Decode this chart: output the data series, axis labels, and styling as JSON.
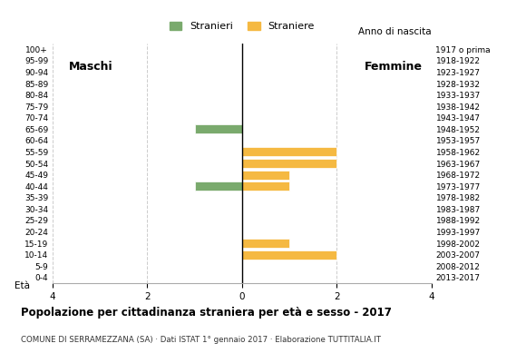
{
  "age_groups": [
    "100+",
    "95-99",
    "90-94",
    "85-89",
    "80-84",
    "75-79",
    "70-74",
    "65-69",
    "60-64",
    "55-59",
    "50-54",
    "45-49",
    "40-44",
    "35-39",
    "30-34",
    "25-29",
    "20-24",
    "15-19",
    "10-14",
    "5-9",
    "0-4"
  ],
  "birth_years": [
    "1917 o prima",
    "1918-1922",
    "1923-1927",
    "1928-1932",
    "1933-1937",
    "1938-1942",
    "1943-1947",
    "1948-1952",
    "1953-1957",
    "1958-1962",
    "1963-1967",
    "1968-1972",
    "1973-1977",
    "1978-1982",
    "1983-1987",
    "1988-1992",
    "1993-1997",
    "1998-2002",
    "2003-2007",
    "2008-2012",
    "2013-2017"
  ],
  "males": [
    0,
    0,
    0,
    0,
    0,
    0,
    0,
    1,
    0,
    0,
    0,
    0,
    1,
    0,
    0,
    0,
    0,
    0,
    0,
    0,
    0
  ],
  "females": [
    0,
    0,
    0,
    0,
    0,
    0,
    0,
    0,
    0,
    2,
    2,
    1,
    1,
    0,
    0,
    0,
    0,
    1,
    2,
    0,
    0
  ],
  "male_color": "#7aaa6d",
  "female_color": "#f5b942",
  "xlim": 4,
  "title": "Popolazione per cittadinanza straniera per età e sesso - 2017",
  "subtitle": "COMUNE DI SERRAMEZZANA (SA) · Dati ISTAT 1° gennaio 2017 · Elaborazione TUTTITALIA.IT",
  "legend_male": "Stranieri",
  "legend_female": "Straniere",
  "label_left": "Maschi",
  "label_right": "Femmine",
  "ylabel_left": "Età",
  "ylabel_right": "Anno di nascita",
  "bar_height": 0.8,
  "background_color": "#ffffff",
  "grid_color": "#cccccc",
  "x_ticks": [
    -4,
    -2,
    0,
    2,
    4
  ],
  "x_tick_labels": [
    "4",
    "2",
    "0",
    "2",
    "4"
  ]
}
